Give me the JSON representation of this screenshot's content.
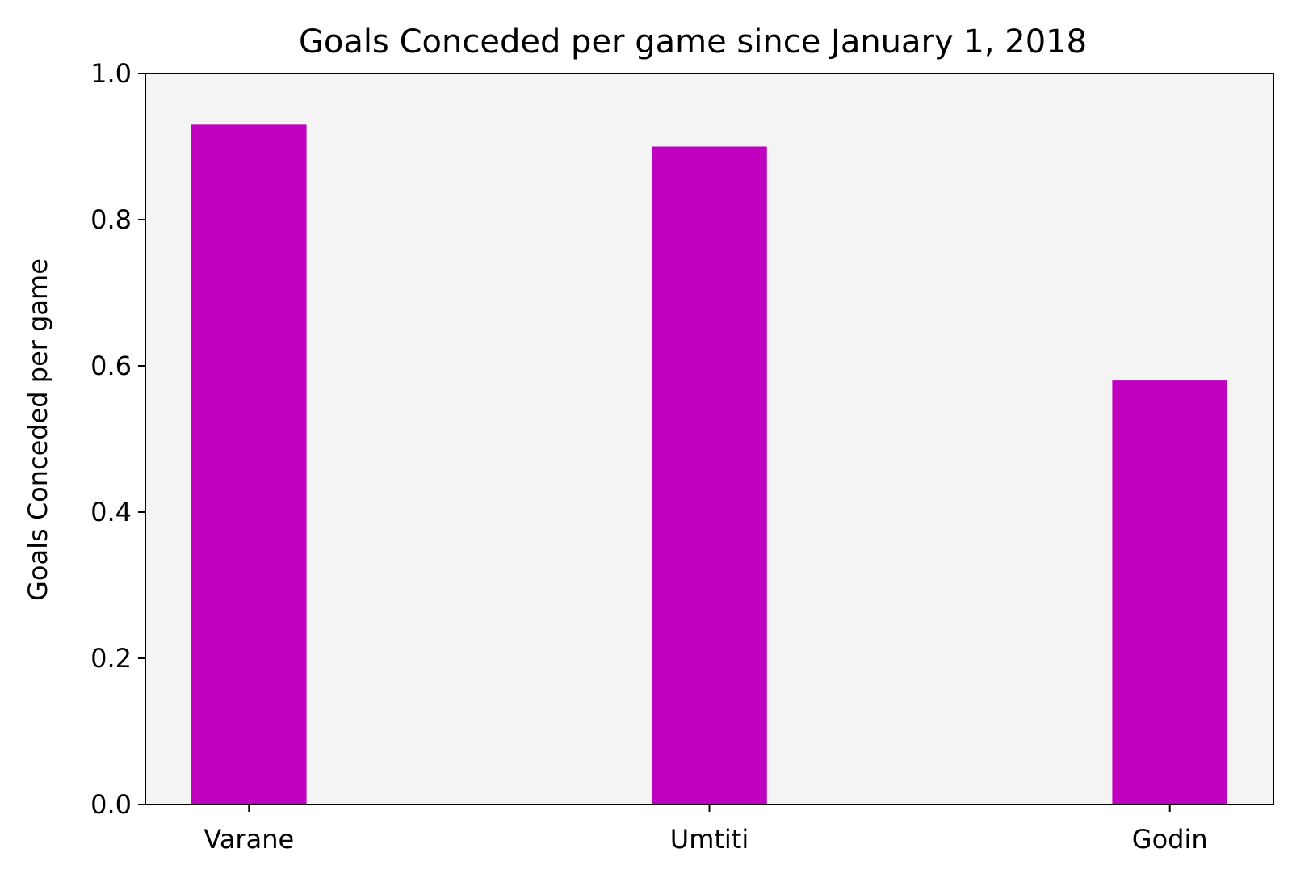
{
  "chart_data": {
    "type": "bar",
    "title": "Goals Conceded per game since January 1, 2018",
    "xlabel": "",
    "ylabel": "Goals Conceded per game",
    "categories": [
      "Varane",
      "Umtiti",
      "Godin"
    ],
    "values": [
      0.93,
      0.9,
      0.58
    ],
    "ylim": [
      0,
      1.0
    ],
    "yticks": [
      "0.0",
      "0.2",
      "0.4",
      "0.6",
      "0.8",
      "1.0"
    ],
    "grid": false,
    "legend": "none",
    "colors": {
      "bar": "#bf00bf",
      "plot_background": "#f4f4f4",
      "axis": "#000000"
    }
  }
}
